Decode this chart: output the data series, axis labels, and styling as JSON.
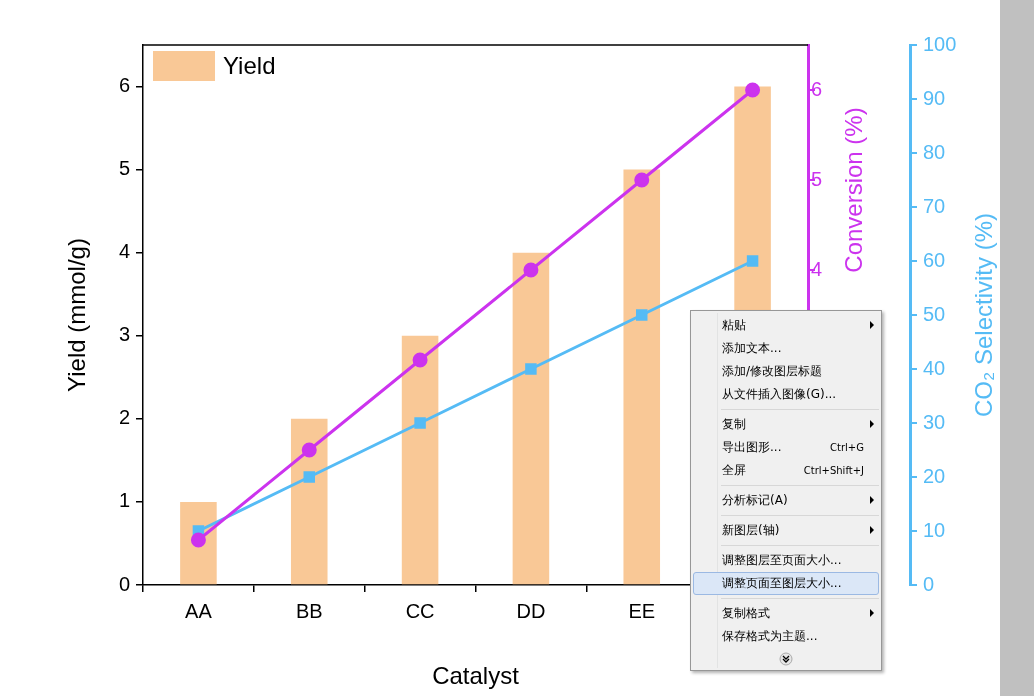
{
  "chart_data": {
    "type": "bar",
    "categories": [
      "AA",
      "BB",
      "CC",
      "DD",
      "EE",
      null
    ],
    "xlabel": "Catalyst",
    "ylabel": "Yield (mmol/g)",
    "y2label": "Conversion (%)",
    "y3label": "CO₂ Selectivity (%)",
    "series": [
      {
        "name": "Yield",
        "color": "#f9c896",
        "values": [
          1,
          2,
          3,
          4,
          5,
          6
        ]
      },
      {
        "type": "line",
        "axis": "y2",
        "color": "#cc33ee",
        "marker": "circle",
        "values": [
          1,
          2,
          3,
          4,
          5,
          6
        ]
      },
      {
        "type": "line",
        "axis": "y3",
        "color": "#55bbf5",
        "marker": "square",
        "values": [
          10,
          20,
          30,
          40,
          50,
          60
        ]
      }
    ],
    "ylim": [
      0,
      6.5
    ],
    "yticks": [
      0,
      1,
      2,
      3,
      4,
      5,
      6
    ],
    "y2lim": [
      0.5,
      6.5
    ],
    "y2ticks": [
      4,
      5,
      6
    ],
    "y3lim": [
      0,
      100
    ],
    "y3ticks": [
      0,
      10,
      20,
      30,
      40,
      50,
      60,
      70,
      80,
      90,
      100
    ],
    "grid": false,
    "legend": "top left",
    "annotations": [
      "粘贴",
      "添加文本...",
      "添加/修改图层标题",
      "从文件插入图像(G)...",
      "复制",
      "导出图形...\tCtrl+G",
      "全屏\tCtrl+Shift+J",
      "分析标记(A)",
      "新图层(轴)",
      "调整图层至页面大小...",
      "调整页面至图层大小...",
      "复制格式",
      "保存格式为主题..."
    ]
  }
}
